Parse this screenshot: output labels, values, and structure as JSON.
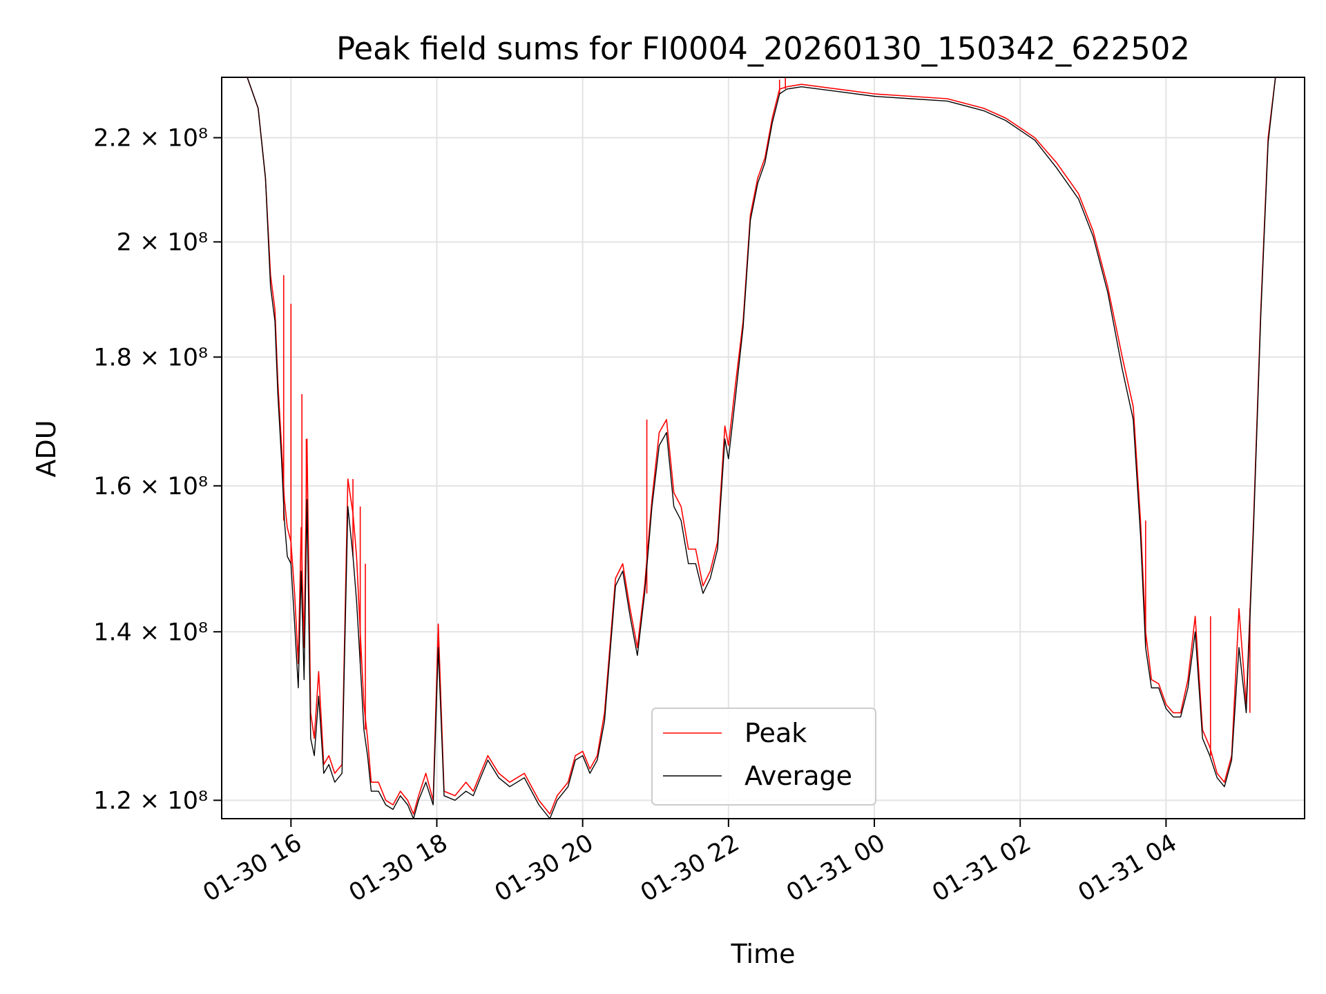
{
  "chart_data": {
    "type": "line",
    "title": "Peak field sums for FI0004_20260130_150342_622502",
    "xlabel": "Time",
    "ylabel": "ADU",
    "yscale": "log",
    "ylim": [
      118000000,
      232500000
    ],
    "xlim_hours": [
      15.05,
      29.9
    ],
    "grid": true,
    "legend_position": "lower-center",
    "x_ticks": [
      {
        "hour": 16,
        "label": "01-30 16"
      },
      {
        "hour": 18,
        "label": "01-30 18"
      },
      {
        "hour": 20,
        "label": "01-30 20"
      },
      {
        "hour": 22,
        "label": "01-30 22"
      },
      {
        "hour": 24,
        "label": "01-31 00"
      },
      {
        "hour": 26,
        "label": "01-31 02"
      },
      {
        "hour": 28,
        "label": "01-31 04"
      }
    ],
    "y_ticks": [
      {
        "value": 120000000,
        "label": "1.2 × 10⁸"
      },
      {
        "value": 140000000,
        "label": "1.4 × 10⁸"
      },
      {
        "value": 160000000,
        "label": "1.6 × 10⁸"
      },
      {
        "value": 180000000,
        "label": "1.8 × 10⁸"
      },
      {
        "value": 200000000,
        "label": "2 × 10⁸"
      },
      {
        "value": 220000000,
        "label": "2.2 × 10⁸"
      }
    ],
    "series": [
      {
        "name": "Peak",
        "color": "#ff0000",
        "x_hours": [
          15.4,
          15.55,
          15.65,
          15.72,
          15.78,
          15.82,
          15.87,
          15.91,
          15.95,
          16.0,
          16.05,
          16.1,
          16.14,
          16.18,
          16.22,
          16.27,
          16.32,
          16.38,
          16.45,
          16.52,
          16.6,
          16.7,
          16.78,
          16.85,
          16.9,
          16.95,
          17.0,
          17.05,
          17.1,
          17.2,
          17.3,
          17.4,
          17.5,
          17.6,
          17.68,
          17.75,
          17.85,
          17.95,
          18.02,
          18.1,
          18.25,
          18.4,
          18.5,
          18.6,
          18.7,
          18.85,
          19.0,
          19.2,
          19.4,
          19.55,
          19.65,
          19.8,
          19.9,
          20.0,
          20.1,
          20.2,
          20.3,
          20.45,
          20.55,
          20.65,
          20.75,
          20.85,
          20.95,
          21.05,
          21.15,
          21.25,
          21.35,
          21.45,
          21.55,
          21.65,
          21.75,
          21.85,
          21.95,
          22.0,
          22.1,
          22.2,
          22.3,
          22.4,
          22.5,
          22.6,
          22.7,
          22.8,
          23.0,
          23.5,
          24.0,
          24.5,
          25.0,
          25.5,
          25.8,
          26.0,
          26.2,
          26.5,
          26.8,
          27.0,
          27.2,
          27.4,
          27.55,
          27.65,
          27.72,
          27.8,
          27.9,
          28.0,
          28.1,
          28.2,
          28.3,
          28.4,
          28.5,
          28.6,
          28.7,
          28.8,
          28.9,
          29.0,
          29.1,
          29.2,
          29.3,
          29.4,
          29.5,
          29.6,
          29.8
        ],
        "y_values": [
          232500000,
          226000000,
          212000000,
          194000000,
          188000000,
          176000000,
          166000000,
          158000000,
          154000000,
          152000000,
          145000000,
          136000000,
          154000000,
          138000000,
          167000000,
          130000000,
          127000000,
          135000000,
          124000000,
          125000000,
          123000000,
          124000000,
          161000000,
          156000000,
          150000000,
          140000000,
          131000000,
          127000000,
          122000000,
          122000000,
          120000000,
          119500000,
          121000000,
          120000000,
          118500000,
          120500000,
          123000000,
          120000000,
          141000000,
          121000000,
          120500000,
          122000000,
          121000000,
          123000000,
          125000000,
          123000000,
          122000000,
          123000000,
          120000000,
          118500000,
          120500000,
          122000000,
          125000000,
          125500000,
          123500000,
          125000000,
          130000000,
          147000000,
          149000000,
          143000000,
          138000000,
          146000000,
          158000000,
          168000000,
          170000000,
          159000000,
          157000000,
          151000000,
          151000000,
          146000000,
          148000000,
          152000000,
          169000000,
          166000000,
          176000000,
          186000000,
          205000000,
          212000000,
          216000000,
          224000000,
          230000000,
          230500000,
          231000000,
          230000000,
          229000000,
          228500000,
          228000000,
          226000000,
          224000000,
          222000000,
          220000000,
          215000000,
          209000000,
          202000000,
          192000000,
          180000000,
          172000000,
          155000000,
          140000000,
          134000000,
          133500000,
          131000000,
          130000000,
          130000000,
          134000000,
          142000000,
          128000000,
          126000000,
          123000000,
          122000000,
          125000000,
          143000000,
          131000000,
          155000000,
          188000000,
          220000000,
          232500000,
          232500000,
          232500000
        ],
        "spikes": [
          {
            "hour": 15.9,
            "value": 194000000
          },
          {
            "hour": 16.0,
            "value": 189000000
          },
          {
            "hour": 16.15,
            "value": 174000000
          },
          {
            "hour": 16.21,
            "value": 167000000
          },
          {
            "hour": 16.85,
            "value": 161000000
          },
          {
            "hour": 16.95,
            "value": 157000000
          },
          {
            "hour": 17.02,
            "value": 149000000
          },
          {
            "hour": 18.02,
            "value": 141000000
          },
          {
            "hour": 20.88,
            "value": 170000000
          },
          {
            "hour": 22.7,
            "value": 232000000
          },
          {
            "hour": 22.78,
            "value": 232500000
          },
          {
            "hour": 27.72,
            "value": 155000000
          },
          {
            "hour": 28.61,
            "value": 142000000
          },
          {
            "hour": 29.15,
            "value": 143000000
          }
        ]
      },
      {
        "name": "Average",
        "color": "#000000",
        "x_hours": [
          15.4,
          15.55,
          15.65,
          15.72,
          15.78,
          15.82,
          15.87,
          15.91,
          15.95,
          16.0,
          16.05,
          16.1,
          16.14,
          16.18,
          16.22,
          16.27,
          16.32,
          16.38,
          16.45,
          16.52,
          16.6,
          16.7,
          16.78,
          16.85,
          16.9,
          16.95,
          17.0,
          17.05,
          17.1,
          17.2,
          17.3,
          17.4,
          17.5,
          17.6,
          17.68,
          17.75,
          17.85,
          17.95,
          18.02,
          18.1,
          18.25,
          18.4,
          18.5,
          18.6,
          18.7,
          18.85,
          19.0,
          19.2,
          19.4,
          19.55,
          19.65,
          19.8,
          19.9,
          20.0,
          20.1,
          20.2,
          20.3,
          20.45,
          20.55,
          20.65,
          20.75,
          20.85,
          20.95,
          21.05,
          21.15,
          21.25,
          21.35,
          21.45,
          21.55,
          21.65,
          21.75,
          21.85,
          21.95,
          22.0,
          22.1,
          22.2,
          22.3,
          22.4,
          22.5,
          22.6,
          22.7,
          22.8,
          23.0,
          23.5,
          24.0,
          24.5,
          25.0,
          25.5,
          25.8,
          26.0,
          26.2,
          26.5,
          26.8,
          27.0,
          27.2,
          27.4,
          27.55,
          27.65,
          27.72,
          27.8,
          27.9,
          28.0,
          28.1,
          28.2,
          28.3,
          28.4,
          28.5,
          28.6,
          28.7,
          28.8,
          28.9,
          29.0,
          29.1,
          29.2,
          29.3,
          29.4,
          29.5,
          29.6,
          29.8
        ],
        "y_values": [
          232500000,
          226000000,
          212000000,
          192000000,
          186000000,
          174000000,
          164000000,
          155000000,
          150000000,
          149000000,
          141000000,
          133000000,
          148000000,
          134000000,
          158000000,
          127000000,
          125000000,
          132000000,
          123000000,
          124000000,
          122000000,
          123000000,
          157000000,
          150000000,
          144000000,
          136000000,
          128000000,
          125000000,
          121000000,
          121000000,
          119500000,
          119000000,
          120500000,
          119500000,
          118000000,
          120000000,
          122000000,
          119500000,
          138000000,
          120500000,
          120000000,
          121000000,
          120500000,
          122500000,
          124500000,
          122500000,
          121500000,
          122500000,
          119500000,
          118000000,
          120000000,
          121500000,
          124500000,
          125000000,
          123000000,
          124500000,
          129000000,
          146000000,
          148000000,
          142000000,
          137000000,
          145000000,
          157000000,
          166000000,
          168000000,
          157000000,
          155000000,
          149000000,
          149000000,
          145000000,
          147000000,
          151000000,
          167000000,
          164000000,
          174000000,
          185000000,
          204000000,
          211000000,
          215000000,
          223000000,
          229000000,
          230000000,
          230500000,
          229500000,
          228500000,
          228000000,
          227500000,
          225500000,
          223500000,
          221500000,
          219500000,
          214000000,
          208000000,
          201000000,
          191000000,
          178000000,
          170000000,
          153000000,
          138000000,
          133000000,
          133000000,
          130500000,
          129500000,
          129500000,
          133000000,
          140000000,
          127000000,
          125000000,
          122500000,
          121500000,
          124500000,
          138000000,
          130000000,
          154000000,
          187000000,
          219000000,
          232500000,
          232500000,
          232500000
        ]
      }
    ]
  }
}
